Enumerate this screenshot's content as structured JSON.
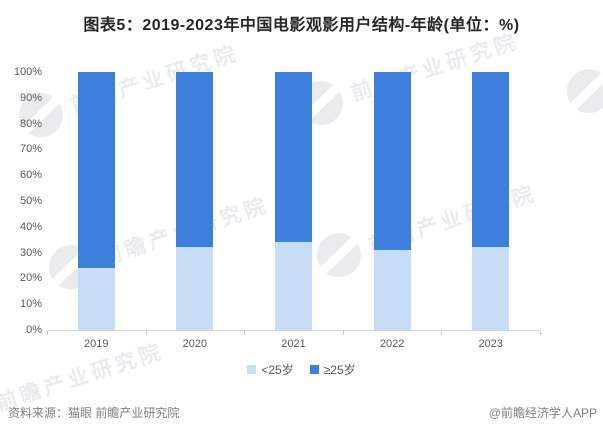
{
  "title": "图表5：2019-2023年中国电影观影用户结构-年龄(单位：%)",
  "chart_data": {
    "type": "stacked_bar",
    "categories": [
      "2019",
      "2020",
      "2021",
      "2022",
      "2023"
    ],
    "series": [
      {
        "name": "<25岁",
        "color": "#c9dcf5",
        "values": [
          24,
          32,
          34,
          31,
          32
        ]
      },
      {
        "name": "≥25岁",
        "color": "#3e7fde",
        "values": [
          76,
          68,
          66,
          69,
          68
        ]
      }
    ],
    "ylabel": "",
    "xlabel": "",
    "ylim": [
      0,
      100
    ],
    "y_ticks": [
      "0%",
      "10%",
      "20%",
      "30%",
      "40%",
      "50%",
      "60%",
      "70%",
      "80%",
      "90%",
      "100%"
    ],
    "grid": false,
    "legend_position": "bottom"
  },
  "footer": {
    "source": "资料来源：猫眼 前瞻产业研究院",
    "credit": "@前瞻经济学人APP"
  },
  "watermark": {
    "text": "前瞻产业研究院"
  },
  "colors": {
    "bar_light": "#c9dcf5",
    "bar_dark": "#3e7fde",
    "axis_line": "#d6d6d6",
    "tick_text": "#595959",
    "footer_text": "#7f7f7f",
    "title_text": "#262626",
    "watermark": "rgba(104,114,128,0.14)"
  }
}
